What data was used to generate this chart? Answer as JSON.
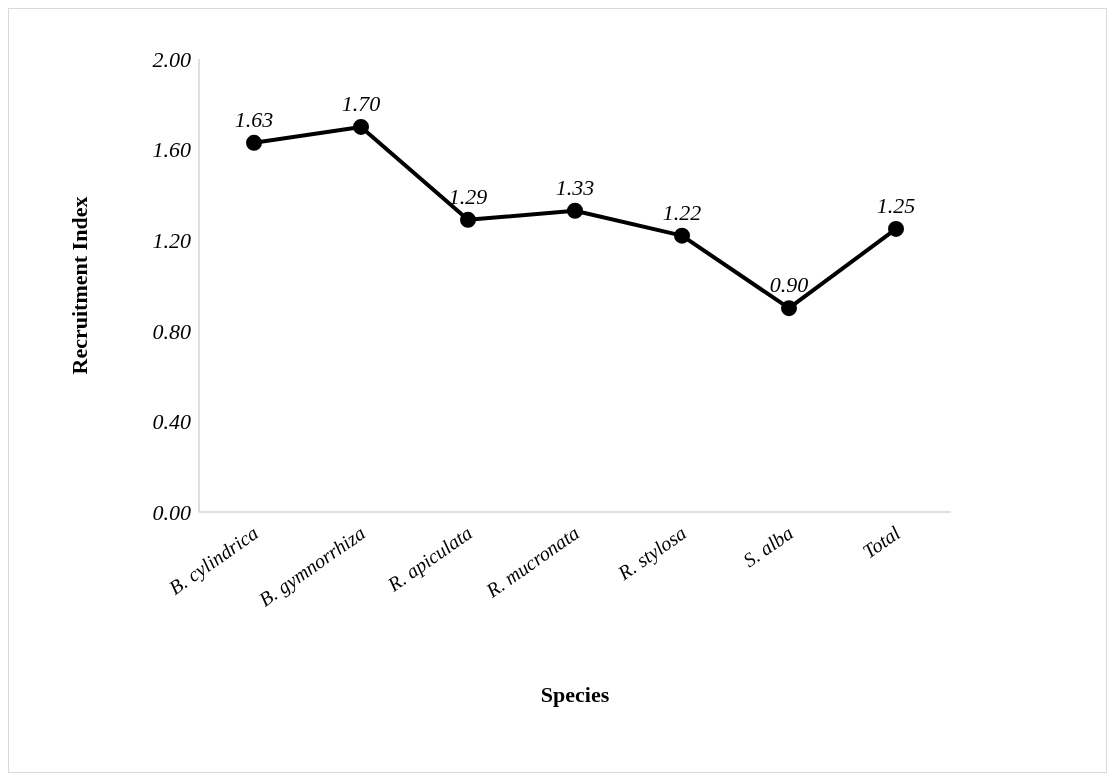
{
  "chart_data": {
    "type": "line",
    "xlabel": "Species",
    "ylabel": "Recruitment Index",
    "categories": [
      "B. cylindrica",
      "B. gymnorrhiza",
      "R. apiculata",
      "R. mucronata",
      "R. stylosa",
      "S. alba",
      "Total"
    ],
    "series": [
      {
        "color": "#000000",
        "values": [
          1.63,
          1.7,
          1.29,
          1.33,
          1.22,
          0.9,
          1.25
        ],
        "value_labels": [
          "1.63",
          "1.70",
          "1.29",
          "1.33",
          "1.22",
          "0.90",
          "1.25"
        ]
      }
    ],
    "ylim": [
      0,
      2
    ],
    "yticks": [
      {
        "value": 0,
        "label": "0.00"
      },
      {
        "value": 0.4,
        "label": "0.40"
      },
      {
        "value": 0.8,
        "label": "0.80"
      },
      {
        "value": 1.2,
        "label": "1.20"
      },
      {
        "value": 1.6,
        "label": "1.60"
      },
      {
        "value": 2,
        "label": "2.00"
      }
    ],
    "grid": false,
    "marker": "circle",
    "line_style": "solid"
  }
}
